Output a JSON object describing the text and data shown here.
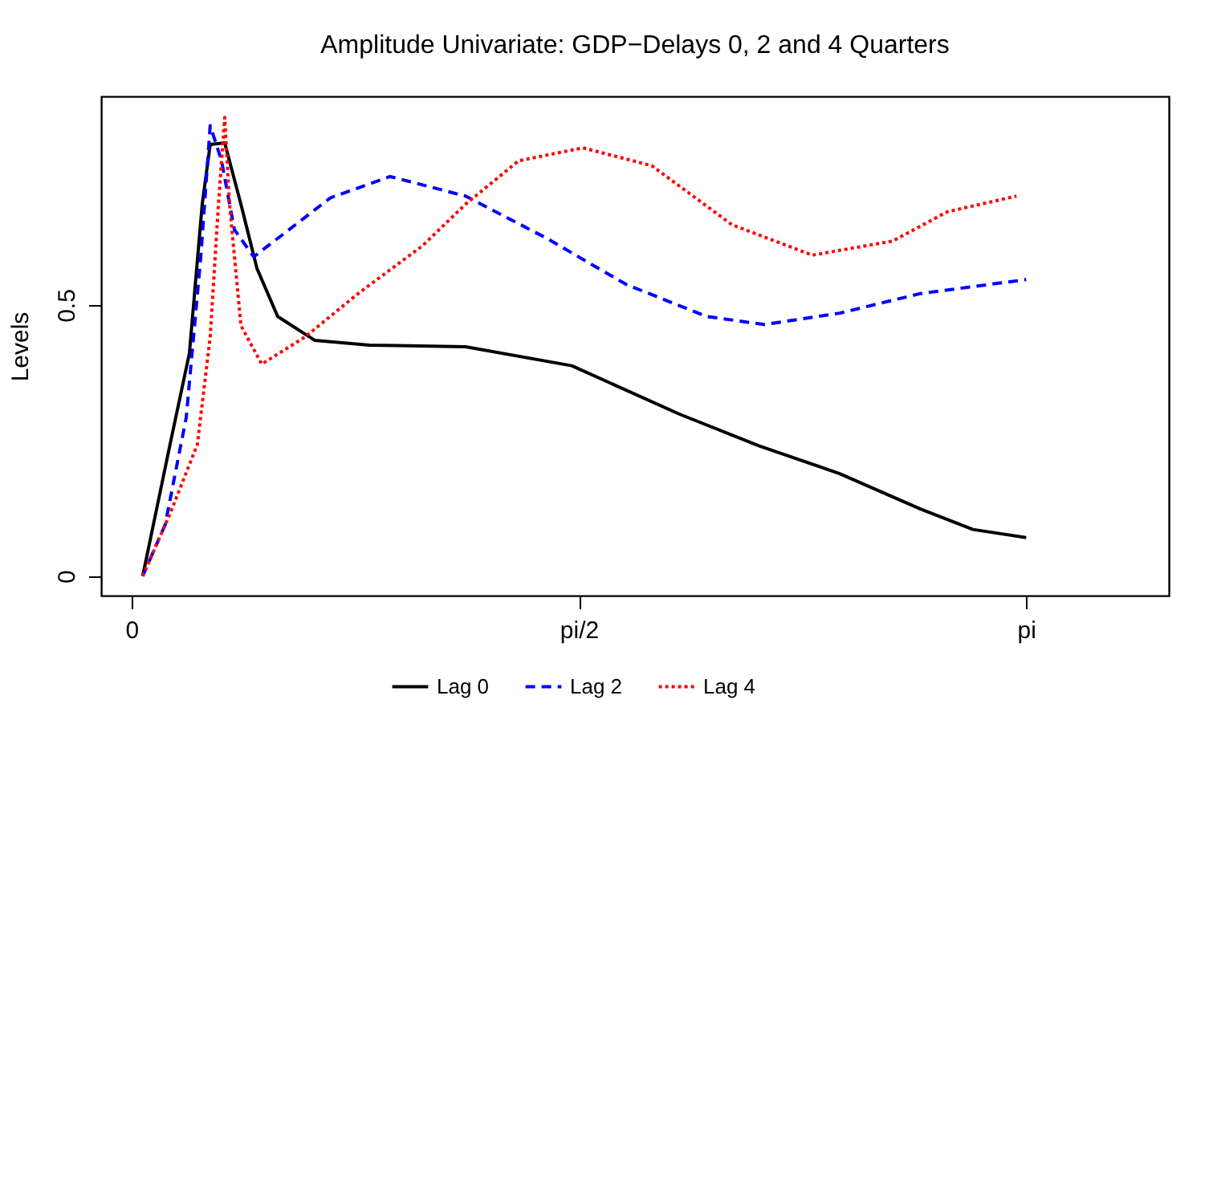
{
  "chart_data": {
    "type": "line",
    "title": "Amplitude Univariate: GDP−Delays 0, 2 and 4 Quarters",
    "ylabel": "Levels",
    "xlim": [
      -0.107,
      3.643
    ],
    "ylim": [
      -0.036,
      0.885
    ],
    "xticks": [
      {
        "value": 0,
        "label": "0"
      },
      {
        "value": 1.5708,
        "label": "pi/2"
      },
      {
        "value": 3.1416,
        "label": "pi"
      }
    ],
    "yticks": [
      0,
      0.5
    ],
    "grid": false,
    "legend": "bottom",
    "marker": "none",
    "series": [
      {
        "name": "Lag 0",
        "color": "#000000",
        "line_style": "solid",
        "x": [
          0.039,
          0.135,
          0.203,
          0.248,
          0.276,
          0.327,
          0.384,
          0.44,
          0.513,
          0.643,
          0.835,
          1.173,
          1.546,
          1.923,
          2.205,
          2.487,
          2.769,
          2.955,
          3.142
        ],
        "values": [
          0,
          0.243,
          0.411,
          0.686,
          0.796,
          0.799,
          0.686,
          0.568,
          0.479,
          0.435,
          0.426,
          0.423,
          0.388,
          0.299,
          0.24,
          0.189,
          0.124,
          0.086,
          0.071
        ]
      },
      {
        "name": "Lag 2",
        "color": "#0000ff",
        "line_style": "dashed",
        "x": [
          0.039,
          0.118,
          0.192,
          0.243,
          0.276,
          0.316,
          0.361,
          0.429,
          0.553,
          0.699,
          0.908,
          1.173,
          1.455,
          1.737,
          2.019,
          2.222,
          2.487,
          2.769,
          3.142
        ],
        "values": [
          0,
          0.095,
          0.293,
          0.589,
          0.831,
          0.766,
          0.639,
          0.589,
          0.639,
          0.698,
          0.737,
          0.701,
          0.624,
          0.538,
          0.479,
          0.464,
          0.485,
          0.521,
          0.547
        ]
      },
      {
        "name": "Lag 4",
        "color": "#ff0000",
        "line_style": "dotted",
        "x": [
          0.039,
          0.135,
          0.231,
          0.276,
          0.305,
          0.327,
          0.344,
          0.384,
          0.457,
          0.609,
          0.795,
          1.021,
          1.173,
          1.359,
          1.585,
          1.827,
          2.109,
          2.391,
          2.673,
          2.865,
          3.108
        ],
        "values": [
          0,
          0.115,
          0.243,
          0.441,
          0.686,
          0.846,
          0.686,
          0.462,
          0.391,
          0.441,
          0.521,
          0.609,
          0.686,
          0.766,
          0.79,
          0.757,
          0.648,
          0.592,
          0.618,
          0.672,
          0.701
        ]
      }
    ]
  }
}
